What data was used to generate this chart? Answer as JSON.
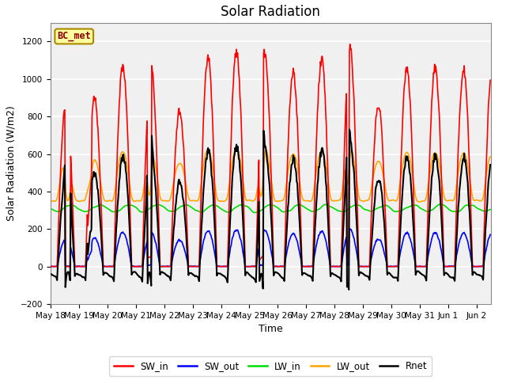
{
  "title": "Solar Radiation",
  "xlabel": "Time",
  "ylabel": "Solar Radiation (W/m2)",
  "ylim": [
    -200,
    1300
  ],
  "station_label": "BC_met",
  "x_tick_labels": [
    "May 18",
    "May 19",
    "May 20",
    "May 21",
    "May 22",
    "May 23",
    "May 24",
    "May 25",
    "May 26",
    "May 27",
    "May 28",
    "May 29",
    "May 30",
    "May 31",
    "Jun 1",
    "Jun 2"
  ],
  "line_colors": {
    "SW_in": "#FF0000",
    "SW_out": "#0000FF",
    "LW_in": "#00DD00",
    "LW_out": "#FFA500",
    "Rnet": "#000000"
  },
  "line_widths": {
    "SW_in": 1.2,
    "SW_out": 1.2,
    "LW_in": 1.2,
    "LW_out": 1.2,
    "Rnet": 1.5
  },
  "background_color": "#FFFFFF",
  "plot_bg_color": "#F0F0F0",
  "grid_color": "#FFFFFF",
  "title_fontsize": 12,
  "label_fontsize": 9,
  "tick_fontsize": 7.5
}
